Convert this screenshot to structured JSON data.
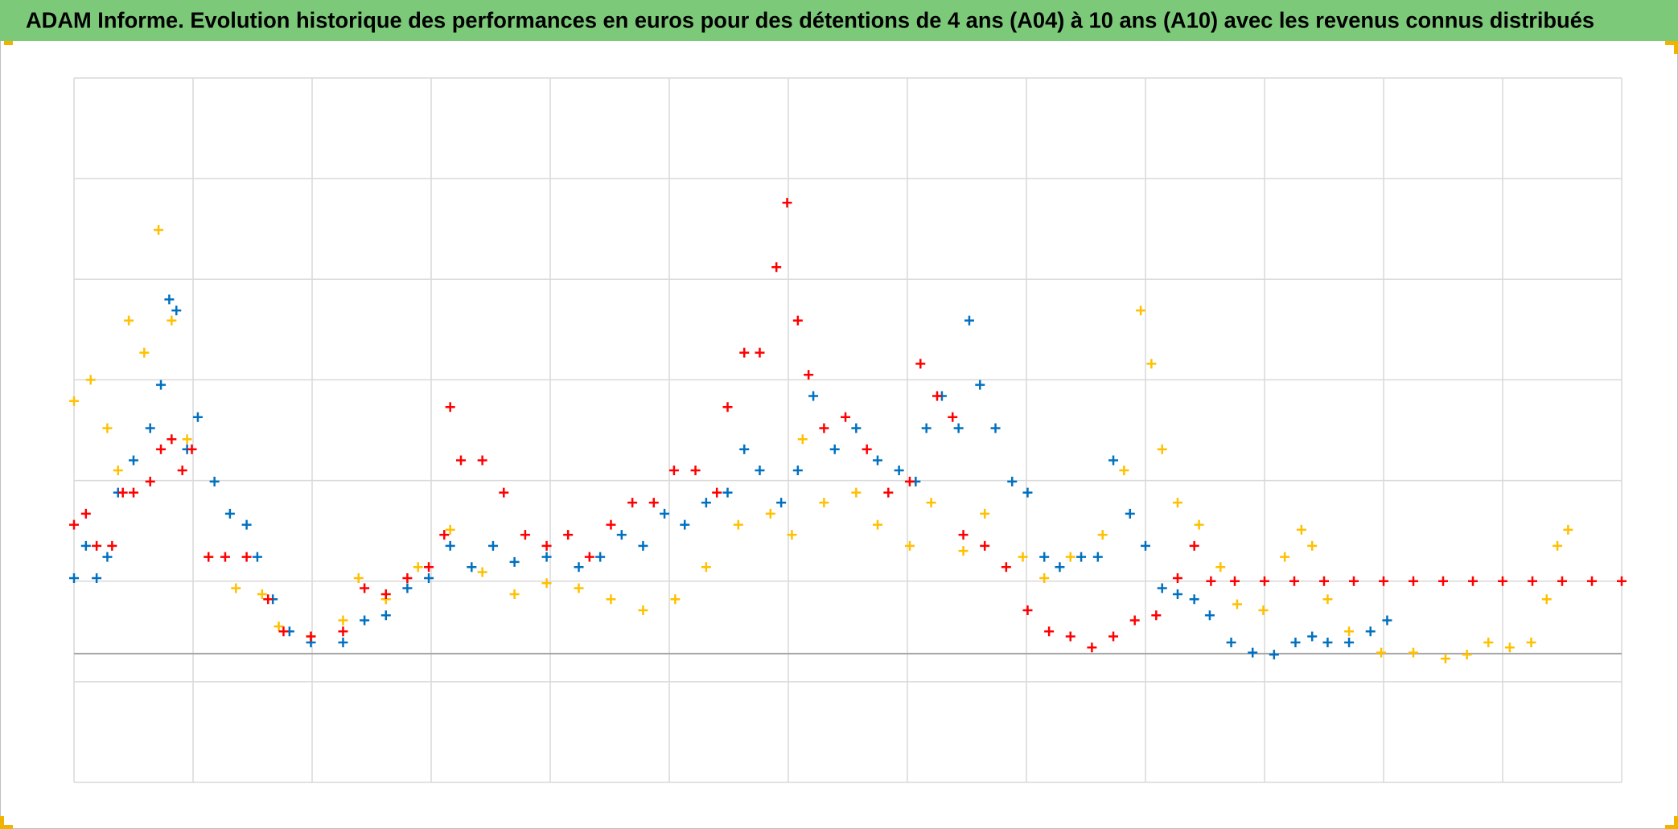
{
  "chart_data": {
    "type": "scatter",
    "title": "ADAM Informe. Evolution historique des performances en euros pour des détentions de 4 ans (A04) à 10 ans (A10) avec les revenus connus distribués",
    "xlim": [
      0,
      13
    ],
    "xticks": [
      0,
      1,
      2,
      3,
      4,
      5,
      6,
      7,
      8,
      9,
      10,
      11,
      12,
      13
    ],
    "ylim": [
      0,
      7
    ],
    "yticks": [
      0,
      1,
      2,
      3,
      4,
      5,
      6,
      7
    ],
    "baseline": 1.28,
    "grid": true,
    "marker": "+",
    "series": [
      {
        "color": "#ffc000",
        "x": [
          0.0,
          0.14,
          0.28,
          0.37,
          0.46,
          0.59,
          0.71,
          0.82,
          0.95,
          1.13,
          1.36,
          1.58,
          1.72,
          1.99,
          2.26,
          2.39,
          2.62,
          2.89,
          3.16,
          3.43,
          3.7,
          3.97,
          4.24,
          4.51,
          4.78,
          5.05,
          5.31,
          5.58,
          5.85,
          6.03,
          6.12,
          6.3,
          6.57,
          6.75,
          7.02,
          7.2,
          7.47,
          7.65,
          7.97,
          8.15,
          8.37,
          8.64,
          8.82,
          8.96,
          9.05,
          9.14,
          9.27,
          9.45,
          9.63,
          9.77,
          9.99,
          10.17,
          10.31,
          10.4,
          10.53,
          10.71,
          10.98,
          11.25,
          11.52,
          11.7,
          11.88,
          12.06,
          12.24,
          12.37,
          12.46,
          12.55
        ],
        "values": [
          3.79,
          4.0,
          3.52,
          3.1,
          4.59,
          4.27,
          5.49,
          4.59,
          3.41,
          2.24,
          1.93,
          1.87,
          1.55,
          1.45,
          1.61,
          2.03,
          1.82,
          2.14,
          2.51,
          2.09,
          1.87,
          1.98,
          1.93,
          1.82,
          1.71,
          1.82,
          2.14,
          2.56,
          2.67,
          2.46,
          3.41,
          2.78,
          2.88,
          2.56,
          2.35,
          2.78,
          2.3,
          2.67,
          2.24,
          2.03,
          2.24,
          2.46,
          3.1,
          4.69,
          4.16,
          3.31,
          2.78,
          2.56,
          2.14,
          1.77,
          1.71,
          2.24,
          2.51,
          2.35,
          1.82,
          1.5,
          1.29,
          1.29,
          1.23,
          1.27,
          1.39,
          1.34,
          1.39,
          1.82,
          2.35,
          2.51
        ]
      },
      {
        "color": "#0070c0",
        "x": [
          0.0,
          0.1,
          0.19,
          0.28,
          0.37,
          0.5,
          0.64,
          0.73,
          0.8,
          0.86,
          0.95,
          1.04,
          1.18,
          1.31,
          1.45,
          1.54,
          1.67,
          1.81,
          1.99,
          2.26,
          2.44,
          2.62,
          2.8,
          2.98,
          3.16,
          3.34,
          3.52,
          3.7,
          3.97,
          4.24,
          4.42,
          4.6,
          4.78,
          4.96,
          5.13,
          5.31,
          5.49,
          5.63,
          5.76,
          5.94,
          6.08,
          6.21,
          6.39,
          6.57,
          6.75,
          6.93,
          7.07,
          7.16,
          7.29,
          7.43,
          7.52,
          7.61,
          7.74,
          7.88,
          8.01,
          8.15,
          8.28,
          8.46,
          8.6,
          8.73,
          8.87,
          9.0,
          9.14,
          9.27,
          9.41,
          9.54,
          9.72,
          9.9,
          10.08,
          10.26,
          10.4,
          10.53,
          10.71,
          10.89,
          11.03
        ],
        "values": [
          2.03,
          2.35,
          2.03,
          2.24,
          2.88,
          3.2,
          3.52,
          3.95,
          4.8,
          4.69,
          3.31,
          3.63,
          2.99,
          2.67,
          2.56,
          2.24,
          1.82,
          1.5,
          1.39,
          1.39,
          1.61,
          1.66,
          1.93,
          2.03,
          2.35,
          2.14,
          2.35,
          2.19,
          2.24,
          2.14,
          2.24,
          2.46,
          2.35,
          2.67,
          2.56,
          2.78,
          2.88,
          3.31,
          3.1,
          2.78,
          3.1,
          3.84,
          3.31,
          3.52,
          3.2,
          3.1,
          2.99,
          3.52,
          3.84,
          3.52,
          4.59,
          3.95,
          3.52,
          2.99,
          2.88,
          2.24,
          2.14,
          2.24,
          2.24,
          3.2,
          2.67,
          2.35,
          1.93,
          1.87,
          1.82,
          1.66,
          1.39,
          1.29,
          1.27,
          1.39,
          1.45,
          1.39,
          1.39,
          1.5,
          1.61
        ]
      },
      {
        "color": "#ff0000",
        "x": [
          0.0,
          0.1,
          0.19,
          0.32,
          0.41,
          0.5,
          0.64,
          0.73,
          0.82,
          0.91,
          0.99,
          1.13,
          1.27,
          1.45,
          1.63,
          1.76,
          1.99,
          2.26,
          2.44,
          2.62,
          2.8,
          2.98,
          3.11,
          3.16,
          3.25,
          3.43,
          3.61,
          3.79,
          3.97,
          4.15,
          4.33,
          4.51,
          4.69,
          4.87,
          5.04,
          5.22,
          5.4,
          5.49,
          5.63,
          5.76,
          5.9,
          5.99,
          6.08,
          6.17,
          6.3,
          6.48,
          6.66,
          6.84,
          7.02,
          7.11,
          7.25,
          7.38,
          7.47,
          7.65,
          7.83,
          8.01,
          8.19,
          8.37,
          8.55,
          8.73,
          8.91,
          9.09,
          9.27,
          9.41,
          9.55,
          9.75,
          10,
          10.25,
          10.5,
          10.75,
          11,
          11.25,
          11.5,
          11.75,
          12,
          12.25,
          12.5,
          12.75,
          13
        ],
        "values": [
          2.56,
          2.67,
          2.35,
          2.35,
          2.88,
          2.88,
          2.99,
          3.31,
          3.41,
          3.1,
          3.31,
          2.24,
          2.24,
          2.24,
          1.82,
          1.5,
          1.45,
          1.5,
          1.93,
          1.87,
          2.03,
          2.14,
          2.46,
          3.73,
          3.2,
          3.2,
          2.88,
          2.46,
          2.35,
          2.46,
          2.24,
          2.56,
          2.78,
          2.78,
          3.1,
          3.1,
          2.88,
          3.73,
          4.27,
          4.27,
          5.12,
          5.76,
          4.59,
          4.05,
          3.52,
          3.63,
          3.31,
          2.88,
          2.99,
          4.16,
          3.84,
          3.63,
          2.46,
          2.35,
          2.14,
          1.71,
          1.5,
          1.45,
          1.34,
          1.45,
          1.61,
          1.66,
          2.03,
          2.35,
          2,
          2,
          2,
          2,
          2,
          2,
          2,
          2,
          2,
          2,
          2,
          2,
          2,
          2,
          2
        ]
      }
    ]
  }
}
